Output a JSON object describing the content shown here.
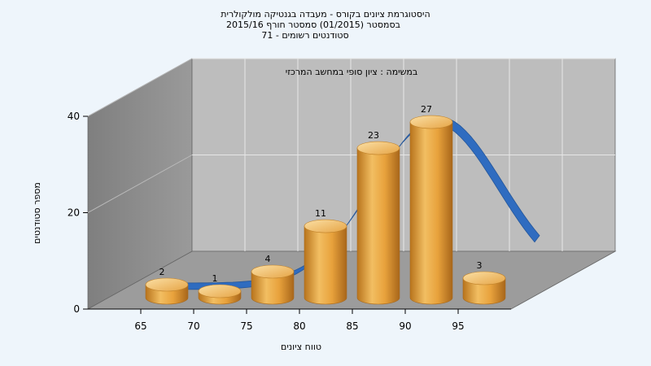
{
  "chart_data": {
    "type": "bar",
    "title_lines": [
      "היסטוגרמת ציונים בקורס - מעבדה בגנטיקה מולקולרית",
      "בסמסטר  (01/2015)  סמסטר חורף 2015/16",
      "סטודנטים רשומים - 71"
    ],
    "subtitle": "במשימה : ציון סופי במחשב המרכזי",
    "xlabel": "טווח ציונים",
    "ylabel": "מספר סטודנטים",
    "x_ticks": [
      "65",
      "70",
      "75",
      "80",
      "85",
      "90",
      "95"
    ],
    "y_ticks": [
      "0",
      "20",
      "40"
    ],
    "ylim": [
      0,
      40
    ],
    "values": [
      2,
      1,
      4,
      11,
      23,
      27,
      3
    ],
    "data_labels": [
      "2",
      "1",
      "4",
      "11",
      "23",
      "27",
      "3"
    ],
    "curve": "normal-distribution",
    "grid": true,
    "colors": {
      "bar": "#e8a23c",
      "bar_dark": "#b8741c",
      "bar_light": "#f7d08a",
      "curve": "#2f6cc0",
      "floor": "#9c9c9c",
      "left_wall": "#8a8a8a",
      "back_wall": "#bdbdbd",
      "background": "#eef5fb"
    }
  }
}
